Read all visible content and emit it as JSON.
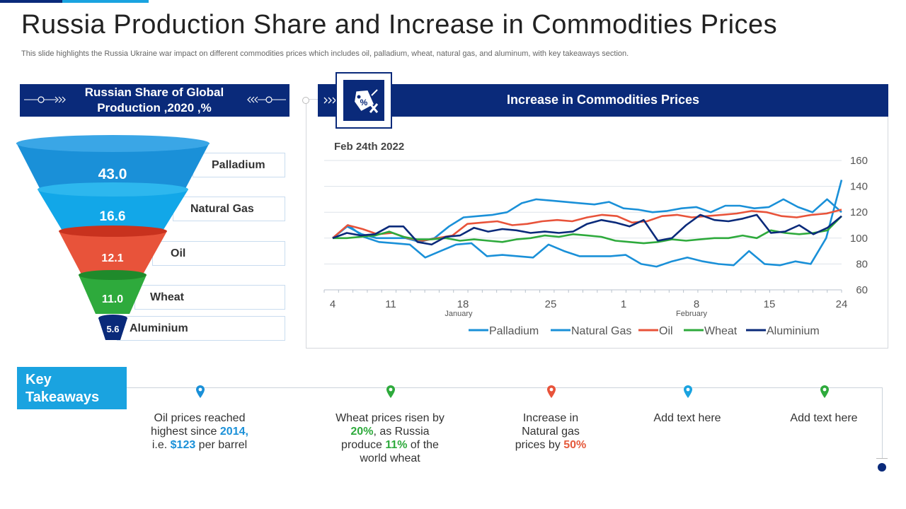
{
  "header": {
    "title": "Russia Production Share and Increase in Commodities Prices",
    "subtitle": "This slide highlights the Russia Ukraine war impact on different commodities prices which includes oil, palladium, wheat, natural gas, and aluminum, with key takeaways section."
  },
  "funnel": {
    "title_line1": "Russian Share of Global",
    "title_line2": "Production ,2020 ,%",
    "items": [
      {
        "value": "43.0",
        "label": "Palladium",
        "color": "#1a90d8"
      },
      {
        "value": "16.6",
        "label": "Natural Gas",
        "color": "#12a7e8"
      },
      {
        "value": "12.1",
        "label": "Oil",
        "color": "#e8533a"
      },
      {
        "value": "11.0",
        "label": "Wheat",
        "color": "#2eaa3c"
      },
      {
        "value": "5.6",
        "label": "Aluminium",
        "color": "#0a2a7a"
      }
    ]
  },
  "prices_panel": {
    "title": "Increase in Commodities Prices",
    "icon": "price-tag-icon"
  },
  "chart_data": {
    "type": "line",
    "annotation": "Feb 24th 2022",
    "x_tick_labels": [
      "4",
      "11",
      "18",
      "25",
      "1",
      "8",
      "15",
      "24"
    ],
    "x_month_labels": [
      "January",
      "February"
    ],
    "ylim": [
      60,
      160
    ],
    "y_ticks": [
      60,
      80,
      100,
      120,
      140,
      160
    ],
    "grid": true,
    "legend_position": "bottom",
    "series": [
      {
        "name": "Palladium",
        "color": "#1a90d8",
        "values": [
          100,
          110,
          101,
          97,
          96,
          95,
          85,
          90,
          95,
          96,
          86,
          87,
          86,
          85,
          95,
          90,
          86,
          86,
          86,
          87,
          80,
          78,
          82,
          85,
          82,
          80,
          79,
          90,
          80,
          79,
          82,
          80,
          100,
          145
        ]
      },
      {
        "name": "Natural Gas",
        "color": "#1a90d8",
        "values": [
          100,
          109,
          103,
          100,
          100,
          100,
          97,
          100,
          109,
          116,
          117,
          118,
          120,
          127,
          130,
          129,
          128,
          127,
          126,
          128,
          123,
          122,
          120,
          121,
          123,
          124,
          120,
          125,
          125,
          123,
          124,
          130,
          124,
          120,
          130,
          120
        ]
      },
      {
        "name": "Oil",
        "color": "#e8533a",
        "values": [
          100,
          110,
          107,
          103,
          104,
          100,
          98,
          100,
          102,
          111,
          112,
          113,
          110,
          111,
          113,
          114,
          113,
          116,
          118,
          117,
          112,
          113,
          117,
          118,
          116,
          117,
          118,
          119,
          121,
          120,
          117,
          116,
          118,
          119,
          122
        ]
      },
      {
        "name": "Wheat",
        "color": "#2eaa3c",
        "values": [
          100,
          100,
          101,
          102,
          105,
          101,
          99,
          99,
          100,
          98,
          99,
          98,
          97,
          99,
          100,
          102,
          101,
          103,
          102,
          101,
          98,
          97,
          96,
          97,
          99,
          98,
          99,
          100,
          100,
          102,
          100,
          106,
          104,
          103,
          104,
          106,
          117
        ]
      },
      {
        "name": "Aluminium",
        "color": "#0a2a7a",
        "values": [
          100,
          104,
          102,
          103,
          109,
          109,
          97,
          95,
          101,
          102,
          108,
          105,
          107,
          106,
          104,
          105,
          104,
          105,
          111,
          114,
          112,
          109,
          114,
          98,
          100,
          110,
          118,
          114,
          113,
          115,
          118,
          104,
          105,
          110,
          103,
          108,
          117
        ]
      }
    ]
  },
  "takeaways": {
    "title_line1": "Key",
    "title_line2": "Takeaways",
    "items": [
      {
        "color": "#1a90d8",
        "parts": [
          "Oil prices reached",
          "highest since ",
          "2014",
          ",",
          "i.e. ",
          "$123",
          " per barrel"
        ]
      },
      {
        "color": "#2eaa3c",
        "parts": [
          "Wheat prices risen by",
          "20%",
          ", as Russia",
          "produce ",
          "11%",
          " of the",
          "world wheat"
        ]
      },
      {
        "color": "#e8533a",
        "parts": [
          "Increase  in",
          "Natural gas",
          "prices by ",
          "50%"
        ]
      },
      {
        "color": "#1aa3e0",
        "parts": [
          "Add text here"
        ]
      },
      {
        "color": "#2eaa3c",
        "parts": [
          "Add text here"
        ]
      }
    ]
  }
}
